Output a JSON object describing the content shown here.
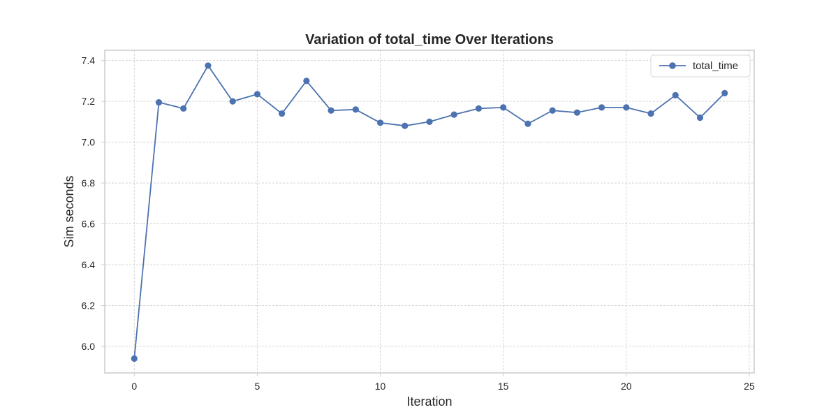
{
  "chart_data": {
    "type": "line",
    "title": "Variation of total_time Over Iterations",
    "xlabel": "Iteration",
    "ylabel": "Sim seconds",
    "xlim": [
      -1.2,
      25.2
    ],
    "ylim": [
      5.87,
      7.45
    ],
    "xticks": [
      0,
      5,
      10,
      15,
      20,
      25
    ],
    "yticks": [
      6.0,
      6.2,
      6.4,
      6.6,
      6.8,
      7.0,
      7.2,
      7.4
    ],
    "grid": true,
    "legend_position": "top-right",
    "series": [
      {
        "name": "total_time",
        "color": "#4c72b0",
        "marker": "circle",
        "x": [
          0,
          1,
          2,
          3,
          4,
          5,
          6,
          7,
          8,
          9,
          10,
          11,
          12,
          13,
          14,
          15,
          16,
          17,
          18,
          19,
          20,
          21,
          22,
          23,
          24
        ],
        "values": [
          5.94,
          7.195,
          7.165,
          7.375,
          7.2,
          7.235,
          7.14,
          7.3,
          7.155,
          7.16,
          7.095,
          7.08,
          7.1,
          7.135,
          7.165,
          7.17,
          7.09,
          7.155,
          7.145,
          7.17,
          7.17,
          7.14,
          7.23,
          7.12,
          7.24
        ]
      }
    ]
  }
}
